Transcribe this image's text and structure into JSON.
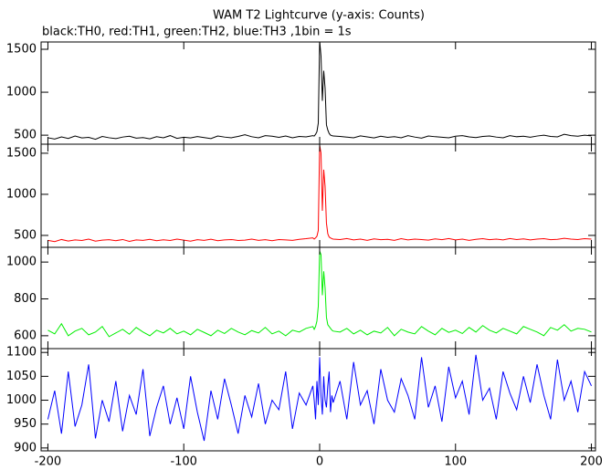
{
  "chart_data": [
    {
      "type": "line",
      "title": "WAM T2 Lightcurve (y-axis: Counts)",
      "subtitle": "black:TH0, red:TH1, green:TH2, blue:TH3 ,1bin = 1s",
      "color": "#000000",
      "x": [
        -200,
        -195,
        -190,
        -185,
        -180,
        -175,
        -170,
        -165,
        -160,
        -155,
        -150,
        -145,
        -140,
        -135,
        -130,
        -125,
        -120,
        -115,
        -110,
        -105,
        -100,
        -95,
        -90,
        -85,
        -80,
        -75,
        -70,
        -65,
        -60,
        -55,
        -50,
        -45,
        -40,
        -35,
        -30,
        -25,
        -20,
        -15,
        -10,
        -5,
        -4,
        -3,
        -2,
        -1,
        0,
        1,
        2,
        3,
        4,
        5,
        6,
        7,
        8,
        9,
        10,
        15,
        20,
        25,
        30,
        35,
        40,
        45,
        50,
        55,
        60,
        65,
        70,
        75,
        80,
        85,
        90,
        95,
        100,
        105,
        110,
        115,
        120,
        125,
        130,
        135,
        140,
        145,
        150,
        155,
        160,
        165,
        170,
        175,
        180,
        185,
        190,
        195,
        200
      ],
      "values": [
        470,
        455,
        480,
        462,
        490,
        468,
        475,
        452,
        485,
        470,
        460,
        478,
        488,
        465,
        472,
        458,
        482,
        470,
        495,
        463,
        476,
        468,
        484,
        472,
        460,
        490,
        478,
        470,
        485,
        505,
        482,
        470,
        495,
        488,
        475,
        490,
        470,
        485,
        480,
        495,
        490,
        510,
        540,
        640,
        1600,
        1420,
        900,
        1250,
        1050,
        620,
        560,
        520,
        500,
        495,
        490,
        485,
        478,
        470,
        492,
        480,
        468,
        488,
        475,
        482,
        470,
        495,
        478,
        465,
        490,
        482,
        476,
        470,
        488,
        495,
        480,
        472,
        485,
        490,
        478,
        470,
        495,
        482,
        488,
        476,
        490,
        500,
        485,
        480,
        510,
        495,
        488,
        500,
        492
      ],
      "xlim": [
        -205,
        203
      ],
      "xticks": [
        -200,
        -100,
        0,
        100,
        200
      ],
      "ylim": [
        395,
        1585
      ],
      "yticks": [
        500,
        1000,
        1500
      ]
    },
    {
      "type": "line",
      "color": "#ff0000",
      "x": [
        -200,
        -195,
        -190,
        -185,
        -180,
        -175,
        -170,
        -165,
        -160,
        -155,
        -150,
        -145,
        -140,
        -135,
        -130,
        -125,
        -120,
        -115,
        -110,
        -105,
        -100,
        -95,
        -90,
        -85,
        -80,
        -75,
        -70,
        -65,
        -60,
        -55,
        -50,
        -45,
        -40,
        -35,
        -30,
        -25,
        -20,
        -15,
        -10,
        -5,
        -4,
        -3,
        -2,
        -1,
        0,
        1,
        2,
        3,
        4,
        5,
        6,
        7,
        8,
        9,
        10,
        15,
        20,
        25,
        30,
        35,
        40,
        45,
        50,
        55,
        60,
        65,
        70,
        75,
        80,
        85,
        90,
        95,
        100,
        105,
        110,
        115,
        120,
        125,
        130,
        135,
        140,
        145,
        150,
        155,
        160,
        165,
        170,
        175,
        180,
        185,
        190,
        195,
        200
      ],
      "values": [
        440,
        425,
        450,
        432,
        445,
        438,
        455,
        430,
        442,
        448,
        436,
        450,
        428,
        445,
        440,
        452,
        435,
        447,
        438,
        455,
        442,
        430,
        448,
        440,
        453,
        436,
        445,
        450,
        438,
        442,
        455,
        440,
        448,
        435,
        450,
        445,
        440,
        452,
        460,
        470,
        455,
        470,
        490,
        560,
        1600,
        1500,
        800,
        1300,
        1100,
        650,
        520,
        480,
        470,
        460,
        455,
        450,
        462,
        445,
        455,
        440,
        458,
        448,
        452,
        440,
        460,
        445,
        455,
        450,
        442,
        458,
        448,
        462,
        445,
        455,
        440,
        452,
        460,
        448,
        455,
        445,
        462,
        450,
        458,
        445,
        455,
        460,
        448,
        452,
        465,
        455,
        450,
        460,
        455
      ],
      "xlim": [
        -205,
        203
      ],
      "xticks": [
        -200,
        -100,
        0,
        100,
        200
      ],
      "ylim": [
        355,
        1610
      ],
      "yticks": [
        500,
        1000,
        1500
      ]
    },
    {
      "type": "line",
      "color": "#00ee00",
      "x": [
        -200,
        -195,
        -190,
        -185,
        -180,
        -175,
        -170,
        -165,
        -160,
        -155,
        -150,
        -145,
        -140,
        -135,
        -130,
        -125,
        -120,
        -115,
        -110,
        -105,
        -100,
        -95,
        -90,
        -85,
        -80,
        -75,
        -70,
        -65,
        -60,
        -55,
        -50,
        -45,
        -40,
        -35,
        -30,
        -25,
        -20,
        -15,
        -10,
        -5,
        -4,
        -3,
        -2,
        -1,
        0,
        1,
        2,
        3,
        4,
        5,
        6,
        7,
        8,
        9,
        10,
        15,
        20,
        25,
        30,
        35,
        40,
        45,
        50,
        55,
        60,
        65,
        70,
        75,
        80,
        85,
        90,
        95,
        100,
        105,
        110,
        115,
        120,
        125,
        130,
        135,
        140,
        145,
        150,
        155,
        160,
        165,
        170,
        175,
        180,
        185,
        190,
        195,
        200
      ],
      "values": [
        630,
        610,
        665,
        600,
        625,
        640,
        605,
        620,
        650,
        595,
        615,
        635,
        608,
        645,
        620,
        600,
        630,
        615,
        640,
        610,
        625,
        605,
        635,
        618,
        600,
        630,
        612,
        640,
        620,
        605,
        628,
        615,
        645,
        610,
        625,
        600,
        630,
        620,
        640,
        650,
        635,
        650,
        680,
        760,
        1060,
        1040,
        820,
        950,
        860,
        700,
        660,
        650,
        640,
        630,
        625,
        620,
        640,
        610,
        630,
        605,
        625,
        615,
        645,
        600,
        635,
        620,
        610,
        650,
        625,
        605,
        640,
        618,
        630,
        612,
        645,
        620,
        655,
        630,
        615,
        640,
        625,
        610,
        650,
        635,
        620,
        600,
        645,
        630,
        660,
        625,
        640,
        635,
        620
      ],
      "xlim": [
        -205,
        203
      ],
      "xticks": [
        -200,
        -100,
        0,
        100,
        200
      ],
      "ylim": [
        530,
        1080
      ],
      "yticks": [
        600,
        800,
        1000
      ]
    },
    {
      "type": "line",
      "color": "#0000ff",
      "x": [
        -200,
        -195,
        -190,
        -185,
        -180,
        -175,
        -170,
        -165,
        -160,
        -155,
        -150,
        -145,
        -140,
        -135,
        -130,
        -125,
        -120,
        -115,
        -110,
        -105,
        -100,
        -95,
        -90,
        -85,
        -80,
        -75,
        -70,
        -65,
        -60,
        -55,
        -50,
        -45,
        -40,
        -35,
        -30,
        -25,
        -20,
        -15,
        -10,
        -5,
        -4,
        -3,
        -2,
        -1,
        0,
        1,
        2,
        3,
        4,
        5,
        6,
        7,
        8,
        9,
        10,
        15,
        20,
        25,
        30,
        35,
        40,
        45,
        50,
        55,
        60,
        65,
        70,
        75,
        80,
        85,
        90,
        95,
        100,
        105,
        110,
        115,
        120,
        125,
        130,
        135,
        140,
        145,
        150,
        155,
        160,
        165,
        170,
        175,
        180,
        185,
        190,
        195,
        200
      ],
      "values": [
        960,
        1020,
        930,
        1060,
        945,
        990,
        1075,
        920,
        1000,
        955,
        1040,
        935,
        1010,
        970,
        1065,
        925,
        985,
        1030,
        950,
        1005,
        940,
        1050,
        975,
        915,
        1020,
        960,
        1045,
        990,
        930,
        1010,
        965,
        1035,
        950,
        1000,
        980,
        1060,
        940,
        1015,
        990,
        1030,
        1000,
        960,
        1040,
        990,
        1090,
        1010,
        970,
        1050,
        1000,
        985,
        1030,
        1060,
        975,
        1010,
        995,
        1040,
        960,
        1080,
        990,
        1020,
        950,
        1065,
        1000,
        975,
        1045,
        1010,
        960,
        1090,
        985,
        1030,
        955,
        1070,
        1005,
        1040,
        970,
        1095,
        1000,
        1025,
        960,
        1060,
        1015,
        980,
        1050,
        995,
        1075,
        1010,
        960,
        1085,
        1000,
        1040,
        975,
        1060,
        1030
      ],
      "xlim": [
        -205,
        203
      ],
      "xticks": [
        -200,
        -100,
        0,
        100,
        200
      ],
      "ylim": [
        894,
        1108
      ],
      "yticks": [
        900,
        950,
        1000,
        1050,
        1100
      ]
    }
  ]
}
